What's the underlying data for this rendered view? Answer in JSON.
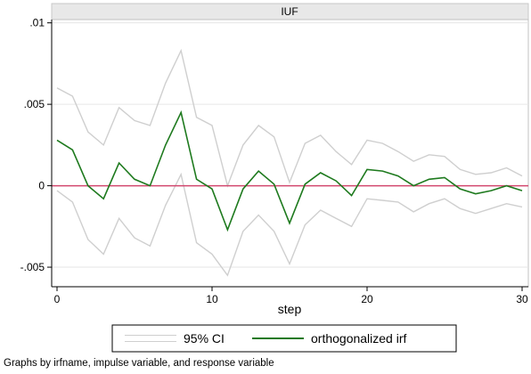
{
  "chart_data": {
    "type": "line",
    "title": "IUF",
    "xlabel": "step",
    "ylabel": "",
    "xlim": [
      0,
      30
    ],
    "ylim": [
      -0.0062,
      0.0102
    ],
    "xticks": [
      0,
      10,
      20,
      30
    ],
    "yticks": [
      -0.005,
      0,
      0.005,
      0.01
    ],
    "ytick_labels": [
      "-.005",
      "0",
      ".005",
      ".01"
    ],
    "grid": "horizontal",
    "colors": {
      "irf": "#1e7a1e",
      "ci": "#cfcfcf",
      "zero": "#d2476e"
    },
    "x": [
      0,
      1,
      2,
      3,
      4,
      5,
      6,
      7,
      8,
      9,
      10,
      11,
      12,
      13,
      14,
      15,
      16,
      17,
      18,
      19,
      20,
      21,
      22,
      23,
      24,
      25,
      26,
      27,
      28,
      29,
      30
    ],
    "series": [
      {
        "name": "orthogonalized irf",
        "role": "irf",
        "values": [
          0.0028,
          0.0022,
          0.0,
          -0.0008,
          0.0014,
          0.0004,
          0.0,
          0.0025,
          0.0045,
          0.0004,
          -0.0002,
          -0.0027,
          -0.0002,
          0.0009,
          0.0001,
          -0.0023,
          0.0001,
          0.0008,
          0.0003,
          -0.0006,
          0.001,
          0.0009,
          0.0006,
          0.0,
          0.0004,
          0.0005,
          -0.0002,
          -0.0005,
          -0.0003,
          0.0,
          -0.0003
        ]
      },
      {
        "name": "95% CI upper",
        "role": "ci",
        "values": [
          0.006,
          0.0055,
          0.0033,
          0.0025,
          0.0048,
          0.004,
          0.0037,
          0.0063,
          0.0083,
          0.0042,
          0.0037,
          0.0,
          0.0025,
          0.0037,
          0.003,
          0.0002,
          0.0026,
          0.0031,
          0.0021,
          0.0013,
          0.0028,
          0.0026,
          0.0021,
          0.0015,
          0.0019,
          0.0018,
          0.001,
          0.0007,
          0.0008,
          0.0011,
          0.0006
        ]
      },
      {
        "name": "95% CI lower",
        "role": "ci",
        "values": [
          -0.0003,
          -0.001,
          -0.0033,
          -0.0042,
          -0.002,
          -0.0032,
          -0.0037,
          -0.0012,
          0.0007,
          -0.0035,
          -0.0042,
          -0.0055,
          -0.0028,
          -0.0018,
          -0.0028,
          -0.0048,
          -0.0024,
          -0.0015,
          -0.002,
          -0.0025,
          -0.0008,
          -0.0009,
          -0.001,
          -0.0016,
          -0.0011,
          -0.0008,
          -0.0014,
          -0.0017,
          -0.0014,
          -0.0011,
          -0.0013
        ]
      }
    ],
    "legend": {
      "position": "bottom",
      "entries": [
        {
          "label": "95% CI",
          "role": "ci"
        },
        {
          "label": "orthogonalized irf",
          "role": "irf"
        }
      ]
    }
  },
  "note": "Graphs by irfname, impulse variable, and response variable"
}
